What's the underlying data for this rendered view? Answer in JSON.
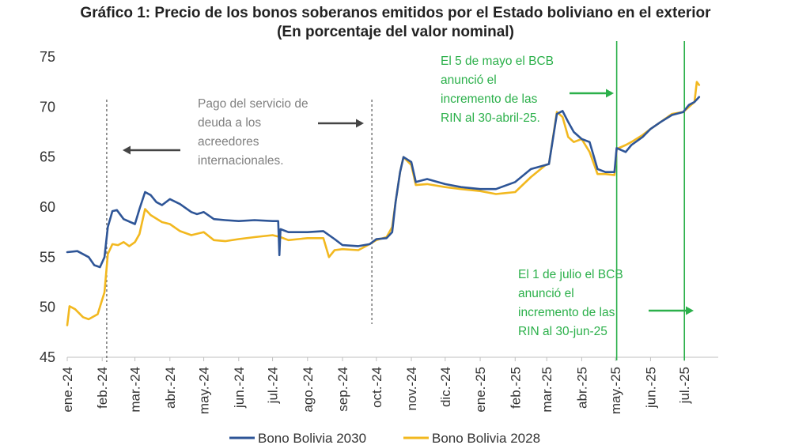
{
  "chart_data": {
    "type": "line",
    "title": "Gráfico 1: Precio de los bonos soberanos emitidos por el Estado boliviano en el exterior",
    "subtitle": "(En porcentaje del valor nominal)",
    "ylim": [
      45,
      75
    ],
    "yticks": [
      45,
      50,
      55,
      60,
      65,
      70,
      75
    ],
    "x_range": [
      "2024-01-01",
      "2025-07-31"
    ],
    "xtick_labels": [
      "ene.-24",
      "feb.-24",
      "mar.-24",
      "abr.-24",
      "may.-24",
      "jun.-24",
      "jul.-24",
      "ago.-24",
      "sep.-24",
      "oct.-24",
      "nov.-24",
      "dic.-24",
      "ene.-25",
      "feb.-25",
      "mar.-25",
      "abr.-25",
      "may.-25",
      "jun.-25",
      "jul.-25"
    ],
    "xtick_dates": [
      "2024-01-01",
      "2024-02-01",
      "2024-03-01",
      "2024-04-01",
      "2024-05-01",
      "2024-06-01",
      "2024-07-01",
      "2024-08-01",
      "2024-09-01",
      "2024-10-01",
      "2024-11-01",
      "2024-12-01",
      "2025-01-01",
      "2025-02-01",
      "2025-03-01",
      "2025-04-01",
      "2025-05-01",
      "2025-06-01",
      "2025-07-01"
    ],
    "grid": false,
    "legend_position": "bottom",
    "series": [
      {
        "name": "Bono Bolivia 2030",
        "color": "#2e5597",
        "x": [
          "2024-01-01",
          "2024-01-10",
          "2024-01-20",
          "2024-01-25",
          "2024-01-30",
          "2024-02-03",
          "2024-02-06",
          "2024-02-10",
          "2024-02-14",
          "2024-02-20",
          "2024-03-01",
          "2024-03-05",
          "2024-03-10",
          "2024-03-15",
          "2024-03-20",
          "2024-03-25",
          "2024-04-01",
          "2024-04-10",
          "2024-04-20",
          "2024-04-25",
          "2024-05-01",
          "2024-05-10",
          "2024-05-20",
          "2024-06-01",
          "2024-06-15",
          "2024-07-01",
          "2024-07-06",
          "2024-07-07",
          "2024-07-08",
          "2024-07-15",
          "2024-08-01",
          "2024-08-15",
          "2024-08-25",
          "2024-09-01",
          "2024-09-15",
          "2024-09-25",
          "2024-10-01",
          "2024-10-10",
          "2024-10-15",
          "2024-10-18",
          "2024-10-22",
          "2024-10-25",
          "2024-11-01",
          "2024-11-05",
          "2024-11-15",
          "2024-12-01",
          "2024-12-15",
          "2025-01-01",
          "2025-01-15",
          "2025-02-01",
          "2025-02-15",
          "2025-02-28",
          "2025-03-03",
          "2025-03-10",
          "2025-03-15",
          "2025-03-20",
          "2025-03-25",
          "2025-04-01",
          "2025-04-08",
          "2025-04-15",
          "2025-04-22",
          "2025-04-30",
          "2025-05-02",
          "2025-05-10",
          "2025-05-15",
          "2025-05-25",
          "2025-06-01",
          "2025-06-10",
          "2025-06-20",
          "2025-06-30",
          "2025-07-05",
          "2025-07-10",
          "2025-07-14"
        ],
        "values": [
          55.5,
          55.6,
          55,
          54.2,
          54,
          55,
          58,
          59.6,
          59.7,
          58.8,
          58.3,
          59.8,
          61.5,
          61.2,
          60.5,
          60.2,
          60.8,
          60.3,
          59.5,
          59.3,
          59.5,
          58.8,
          58.7,
          58.6,
          58.7,
          58.6,
          58.6,
          55.2,
          57.8,
          57.5,
          57.5,
          57.6,
          56.8,
          56.2,
          56.1,
          56.3,
          56.8,
          56.9,
          57.5,
          60.5,
          63.5,
          65,
          64.5,
          62.5,
          62.8,
          62.3,
          62,
          61.8,
          61.8,
          62.5,
          63.8,
          64.2,
          64.3,
          69.3,
          69.6,
          68.5,
          67.5,
          66.8,
          66.5,
          63.8,
          63.5,
          63.5,
          65.9,
          65.5,
          66.2,
          67,
          67.8,
          68.5,
          69.2,
          69.5,
          70.2,
          70.5,
          71
        ]
      },
      {
        "name": "Bono Bolivia 2028",
        "color": "#f2b81f",
        "x": [
          "2024-01-01",
          "2024-01-03",
          "2024-01-08",
          "2024-01-15",
          "2024-01-20",
          "2024-01-28",
          "2024-02-03",
          "2024-02-06",
          "2024-02-10",
          "2024-02-15",
          "2024-02-20",
          "2024-02-25",
          "2024-03-01",
          "2024-03-05",
          "2024-03-10",
          "2024-03-15",
          "2024-03-25",
          "2024-04-01",
          "2024-04-10",
          "2024-04-20",
          "2024-05-01",
          "2024-05-10",
          "2024-05-20",
          "2024-06-01",
          "2024-06-15",
          "2024-07-01",
          "2024-07-08",
          "2024-07-15",
          "2024-08-01",
          "2024-08-15",
          "2024-08-20",
          "2024-08-25",
          "2024-09-01",
          "2024-09-15",
          "2024-09-25",
          "2024-10-01",
          "2024-10-10",
          "2024-10-15",
          "2024-10-18",
          "2024-10-22",
          "2024-10-25",
          "2024-11-01",
          "2024-11-05",
          "2024-11-15",
          "2024-12-01",
          "2024-12-15",
          "2025-01-01",
          "2025-01-15",
          "2025-02-01",
          "2025-02-15",
          "2025-02-28",
          "2025-03-03",
          "2025-03-10",
          "2025-03-15",
          "2025-03-20",
          "2025-03-25",
          "2025-04-01",
          "2025-04-08",
          "2025-04-15",
          "2025-04-22",
          "2025-04-30",
          "2025-05-02",
          "2025-05-10",
          "2025-05-15",
          "2025-05-25",
          "2025-06-01",
          "2025-06-10",
          "2025-06-20",
          "2025-06-30",
          "2025-07-05",
          "2025-07-10",
          "2025-07-12",
          "2025-07-14"
        ],
        "values": [
          48.2,
          50.1,
          49.8,
          49,
          48.8,
          49.3,
          51.5,
          55.3,
          56.3,
          56.2,
          56.5,
          56.1,
          56.5,
          57.3,
          59.8,
          59.2,
          58.5,
          58.3,
          57.6,
          57.2,
          57.5,
          56.7,
          56.6,
          56.8,
          57,
          57.2,
          57,
          56.7,
          56.9,
          56.9,
          55,
          55.7,
          55.8,
          55.7,
          56.3,
          56.7,
          57,
          58,
          60.5,
          63.5,
          65,
          64.2,
          62.2,
          62.3,
          62,
          61.8,
          61.6,
          61.3,
          61.5,
          63,
          64.2,
          64.3,
          69.5,
          69,
          67,
          66.5,
          66.8,
          65.5,
          63.3,
          63.3,
          63.2,
          65.8,
          66.2,
          66.5,
          67.2,
          67.8,
          68.5,
          69.3,
          69.5,
          70,
          70.5,
          72.5,
          72.2
        ]
      }
    ],
    "vlines": [
      {
        "date": "2024-02-05",
        "style": "dashed",
        "color": "#555555"
      },
      {
        "date": "2024-09-27",
        "style": "dashed",
        "color": "#555555"
      },
      {
        "date": "2025-05-02",
        "style": "solid",
        "color": "#2bb04a"
      },
      {
        "date": "2025-07-01",
        "style": "solid",
        "color": "#2bb04a"
      }
    ],
    "annotations": {
      "servicio": {
        "lines": [
          "Pago del servicio de",
          "deuda a los",
          "acreedores",
          "internacionales."
        ],
        "color": "#808080"
      },
      "mayo": {
        "lines": [
          "El 5 de mayo el BCB",
          "anunció el",
          "incremento de las",
          "RIN al 30-abril-25."
        ],
        "color": "#2bb04a"
      },
      "julio": {
        "lines": [
          "El 1 de julio el BCB",
          "anunció el",
          "incremento de las",
          "RIN al 30-jun-25"
        ],
        "color": "#2bb04a"
      }
    }
  }
}
